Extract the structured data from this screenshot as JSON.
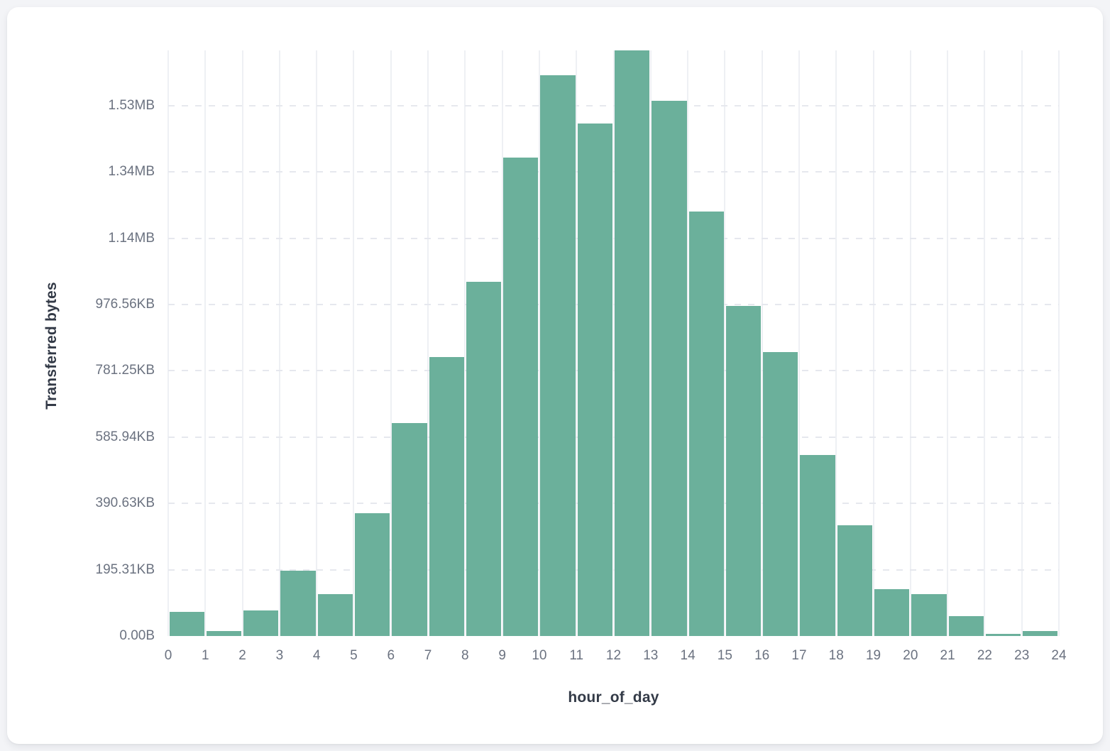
{
  "chart_data": {
    "type": "bar",
    "title": "",
    "xlabel": "hour_of_day",
    "ylabel": "Transferred bytes",
    "unit": "bytes",
    "categories": [
      0,
      1,
      2,
      3,
      4,
      5,
      6,
      7,
      8,
      9,
      10,
      11,
      12,
      13,
      14,
      15,
      16,
      17,
      18,
      19,
      20,
      21,
      22,
      23
    ],
    "values": [
      72800,
      15000,
      77100,
      196000,
      125700,
      370400,
      642400,
      841500,
      1068500,
      1443200,
      1691600,
      1546000,
      1766500,
      1614600,
      1280500,
      995700,
      856500,
      546000,
      334000,
      141300,
      126400,
      60000,
      6400,
      15000
    ],
    "ylim": [
      0,
      1766500
    ],
    "grid": true,
    "legend_position": "none",
    "y_ticks": [
      {
        "value": 0,
        "label": "0.00B"
      },
      {
        "value": 200000,
        "label": "195.31KB"
      },
      {
        "value": 400000,
        "label": "390.63KB"
      },
      {
        "value": 600000,
        "label": "585.94KB"
      },
      {
        "value": 800000,
        "label": "781.25KB"
      },
      {
        "value": 1000000,
        "label": "976.56KB"
      },
      {
        "value": 1200000,
        "label": "1.14MB"
      },
      {
        "value": 1400000,
        "label": "1.34MB"
      },
      {
        "value": 1600000,
        "label": "1.53MB"
      }
    ],
    "x_ticks": [
      "0",
      "1",
      "2",
      "3",
      "4",
      "5",
      "6",
      "7",
      "8",
      "9",
      "10",
      "11",
      "12",
      "13",
      "14",
      "15",
      "16",
      "17",
      "18",
      "19",
      "20",
      "21",
      "22",
      "23",
      "24"
    ]
  },
  "colors": {
    "bar": "#6bb09b",
    "page_background": "#f3f4f7",
    "card_background": "#ffffff",
    "v_gridline": "#eef0f4",
    "h_gridline_dashed": "#e6e8ee",
    "tick_text": "#6b7280",
    "axis_title_text": "#333a47"
  }
}
